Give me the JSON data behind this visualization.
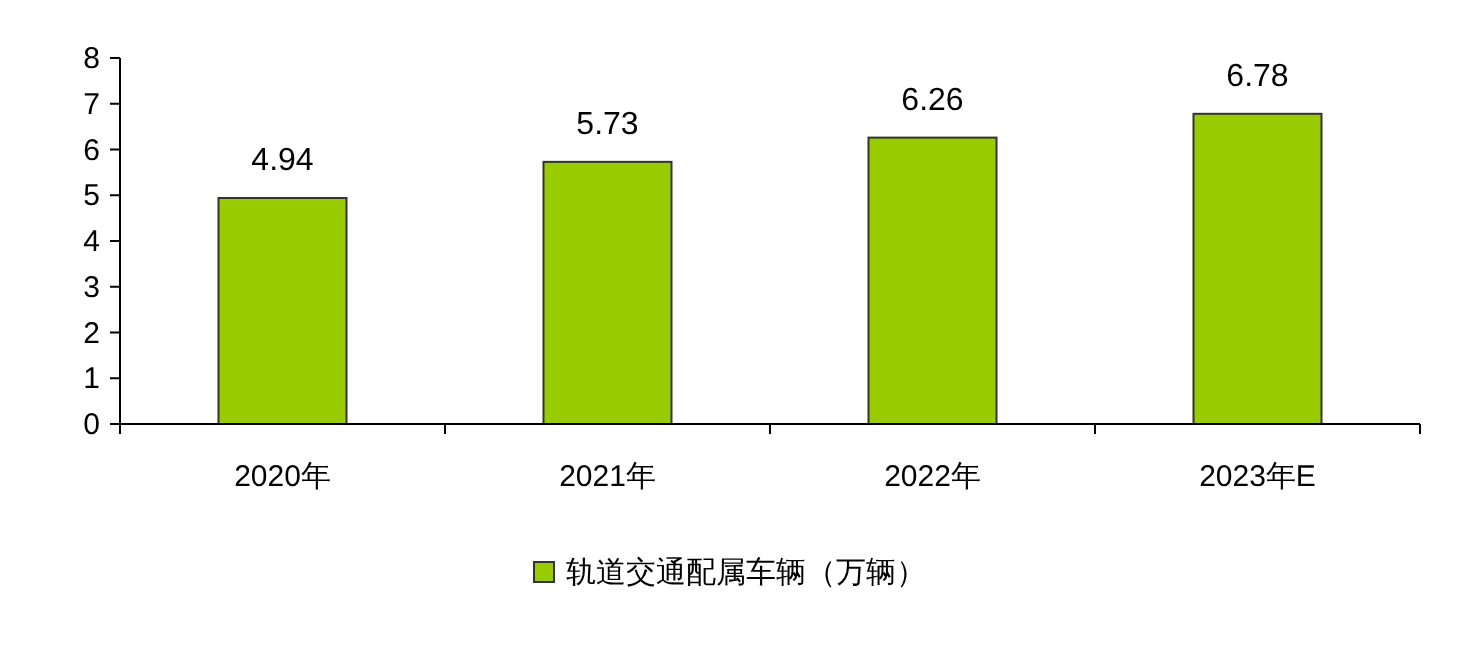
{
  "chart_data": {
    "type": "bar",
    "categories": [
      "2020年",
      "2021年",
      "2022年",
      "2023年E"
    ],
    "series": [
      {
        "name": "轨道交通配属车辆（万辆）",
        "color": "#99cc00",
        "values": [
          4.94,
          5.73,
          6.26,
          6.78
        ]
      }
    ],
    "ylim": [
      0,
      8
    ],
    "yticks": [
      0,
      1,
      2,
      3,
      4,
      5,
      6,
      7,
      8
    ],
    "data_labels": true,
    "legend": "bottom",
    "grid": false
  }
}
